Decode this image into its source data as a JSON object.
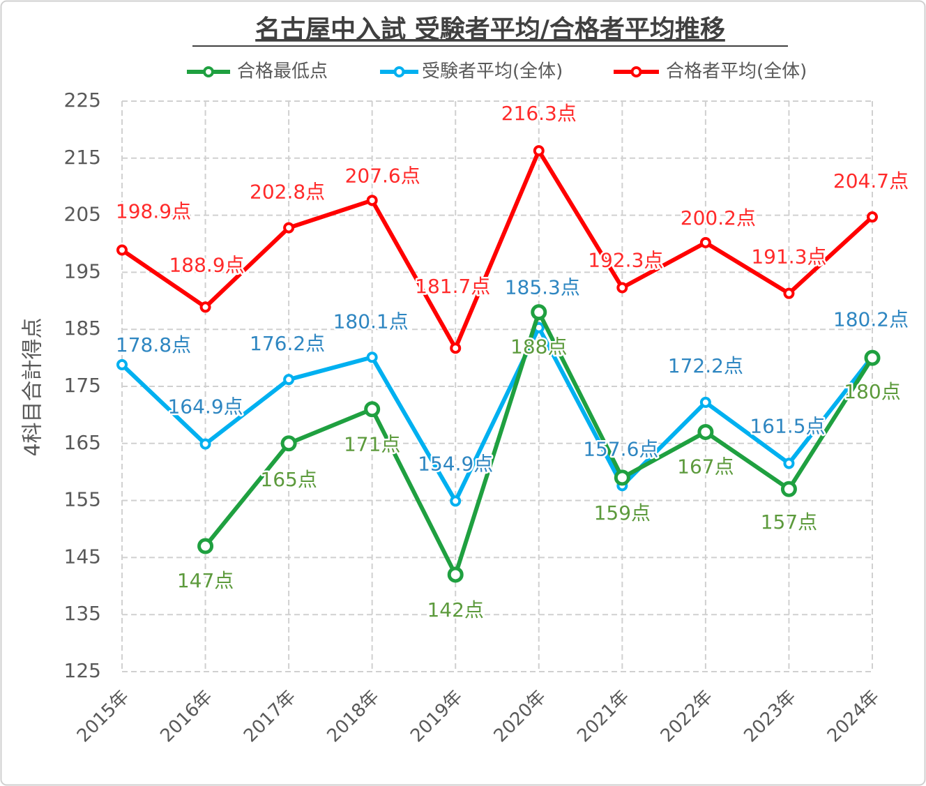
{
  "chart_data": {
    "type": "line",
    "title": "名古屋中入試 受験者平均/合格者平均推移",
    "y_label": "4科目合計得点",
    "categories": [
      "2015年",
      "2016年",
      "2017年",
      "2018年",
      "2019年",
      "2020年",
      "2021年",
      "2022年",
      "2023年",
      "2024年"
    ],
    "ylim": [
      125,
      225
    ],
    "yticks": [
      125,
      135,
      145,
      155,
      165,
      175,
      185,
      195,
      205,
      215,
      225
    ],
    "grid": true,
    "legend": "top",
    "series": [
      {
        "name": "合格最低点",
        "color": "#1fa040",
        "label_color": "#5c9a3c",
        "values": [
          null,
          147,
          165,
          171,
          142,
          188,
          159,
          167,
          157,
          180
        ],
        "value_labels": [
          null,
          "147点",
          "165点",
          "171点",
          "142点",
          "188点",
          "159点",
          "167点",
          "157点",
          "180点"
        ]
      },
      {
        "name": "受験者平均(全体)",
        "color": "#00b0f0",
        "label_color": "#2e86c1",
        "values": [
          178.8,
          164.9,
          176.2,
          180.1,
          154.9,
          185.3,
          157.6,
          172.2,
          161.5,
          180.2
        ],
        "value_labels": [
          "178.8点",
          "164.9点",
          "176.2点",
          "180.1点",
          "154.9点",
          "185.3点",
          "157.6点",
          "172.2点",
          "161.5点",
          "180.2点"
        ]
      },
      {
        "name": "合格者平均(全体)",
        "color": "#ff0000",
        "label_color": "#ff2a2a",
        "values": [
          198.9,
          188.9,
          202.8,
          207.6,
          181.7,
          216.3,
          192.3,
          200.2,
          191.3,
          204.7
        ],
        "value_labels": [
          "198.9点",
          "188.9点",
          "202.8点",
          "207.6点",
          "181.7点",
          "216.3点",
          "192.3点",
          "200.2点",
          "191.3点",
          "204.7点"
        ]
      }
    ]
  }
}
